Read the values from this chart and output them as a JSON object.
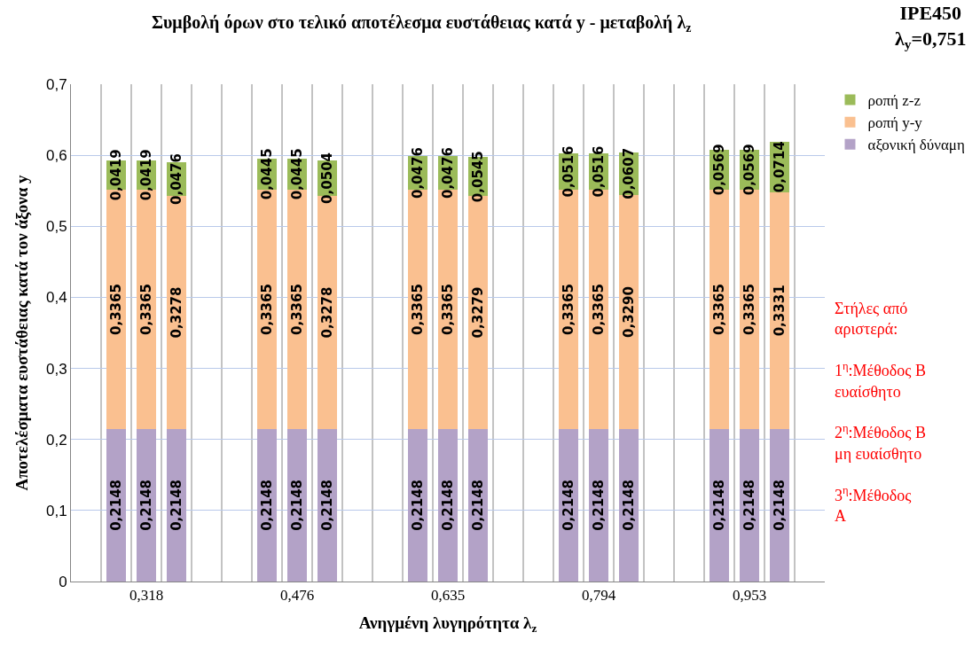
{
  "chart_data": {
    "type": "bar",
    "stacked": true,
    "title": "Συμβολή όρων στο τελικό αποτέλεσμα ευστάθειας κατά y - μεταβολή λ$_{z}$",
    "xlabel": "Ανηγμένη λυγηρότητα λ$_{z}$",
    "ylabel": "Αποτελέσματα ευστάθειας κατά τον άξονα y",
    "annotations": [
      "IPE450\nλ$_{y}$=0,751",
      "Στήλες από\nαριστερά:\n\n1$^{η}$:Μέθοδος Β\nευαίσθητο\n\n2$^{η}$:Μέθοδος Β\nμη ευαίσθητο\n\n3$^{η}$:Μέθοδος\nΑ"
    ],
    "categories": [
      null,
      null,
      "0,318",
      null,
      null,
      null,
      null,
      "0,476",
      null,
      null,
      null,
      null,
      "0,635",
      null,
      null,
      null,
      null,
      "0,794",
      null,
      null,
      null,
      null,
      "0,953",
      null,
      null
    ],
    "series": [
      {
        "name": "αξονική δύναμη",
        "color": "#b3a2c7",
        "values": [
          null,
          0.2148,
          0.2148,
          0.2148,
          null,
          null,
          0.2148,
          0.2148,
          0.2148,
          null,
          null,
          0.2148,
          0.2148,
          0.2148,
          null,
          null,
          0.2148,
          0.2148,
          0.2148,
          null,
          null,
          0.2148,
          0.2148,
          0.2148,
          null
        ],
        "value_labels": [
          null,
          "0,2148",
          "0,2148",
          "0,2148",
          null,
          null,
          "0,2148",
          "0,2148",
          "0,2148",
          null,
          null,
          "0,2148",
          "0,2148",
          "0,2148",
          null,
          null,
          "0,2148",
          "0,2148",
          "0,2148",
          null,
          null,
          "0,2148",
          "0,2148",
          "0,2148",
          null
        ]
      },
      {
        "name": "ροπή y-y",
        "color": "#fac090",
        "values": [
          null,
          0.3365,
          0.3365,
          0.3278,
          null,
          null,
          0.3365,
          0.3365,
          0.3278,
          null,
          null,
          0.3365,
          0.3365,
          0.3279,
          null,
          null,
          0.3365,
          0.3365,
          0.329,
          null,
          null,
          0.3365,
          0.3365,
          0.3331,
          null
        ],
        "value_labels": [
          null,
          "0,3365",
          "0,3365",
          "0,3278",
          null,
          null,
          "0,3365",
          "0,3365",
          "0,3278",
          null,
          null,
          "0,3365",
          "0,3365",
          "0,3279",
          null,
          null,
          "0,3365",
          "0,3365",
          "0,3290",
          null,
          null,
          "0,3365",
          "0,3365",
          "0,3331",
          null
        ]
      },
      {
        "name": "ροπή z-z",
        "color": "#9bbb59",
        "values": [
          null,
          0.0419,
          0.0419,
          0.0476,
          null,
          null,
          0.0445,
          0.0445,
          0.0504,
          null,
          null,
          0.0476,
          0.0476,
          0.0545,
          null,
          null,
          0.0516,
          0.0516,
          0.0607,
          null,
          null,
          0.0569,
          0.0569,
          0.0714,
          null
        ],
        "value_labels": [
          null,
          "0,0419",
          "0,0419",
          "0,0476",
          null,
          null,
          "0,0445",
          "0,0445",
          "0,0504",
          null,
          null,
          "0,0476",
          "0,0476",
          "0,0545",
          null,
          null,
          "0,0516",
          "0,0516",
          "0,0607",
          null,
          null,
          "0,0569",
          "0,0569",
          "0,0714",
          null
        ]
      }
    ],
    "ylim": [
      0,
      0.7
    ],
    "yticks": [
      0,
      {
        "value": 0.1,
        "label": "0,1"
      },
      {
        "value": 0.2,
        "label": "0,2"
      },
      {
        "value": 0.3,
        "label": "0,3"
      },
      {
        "value": 0.4,
        "label": "0,4"
      },
      {
        "value": 0.5,
        "label": "0,5"
      },
      {
        "value": 0.6,
        "label": "0,6"
      },
      {
        "value": 0.7,
        "label": "0,7"
      }
    ],
    "grid": true,
    "legend": "top right"
  }
}
